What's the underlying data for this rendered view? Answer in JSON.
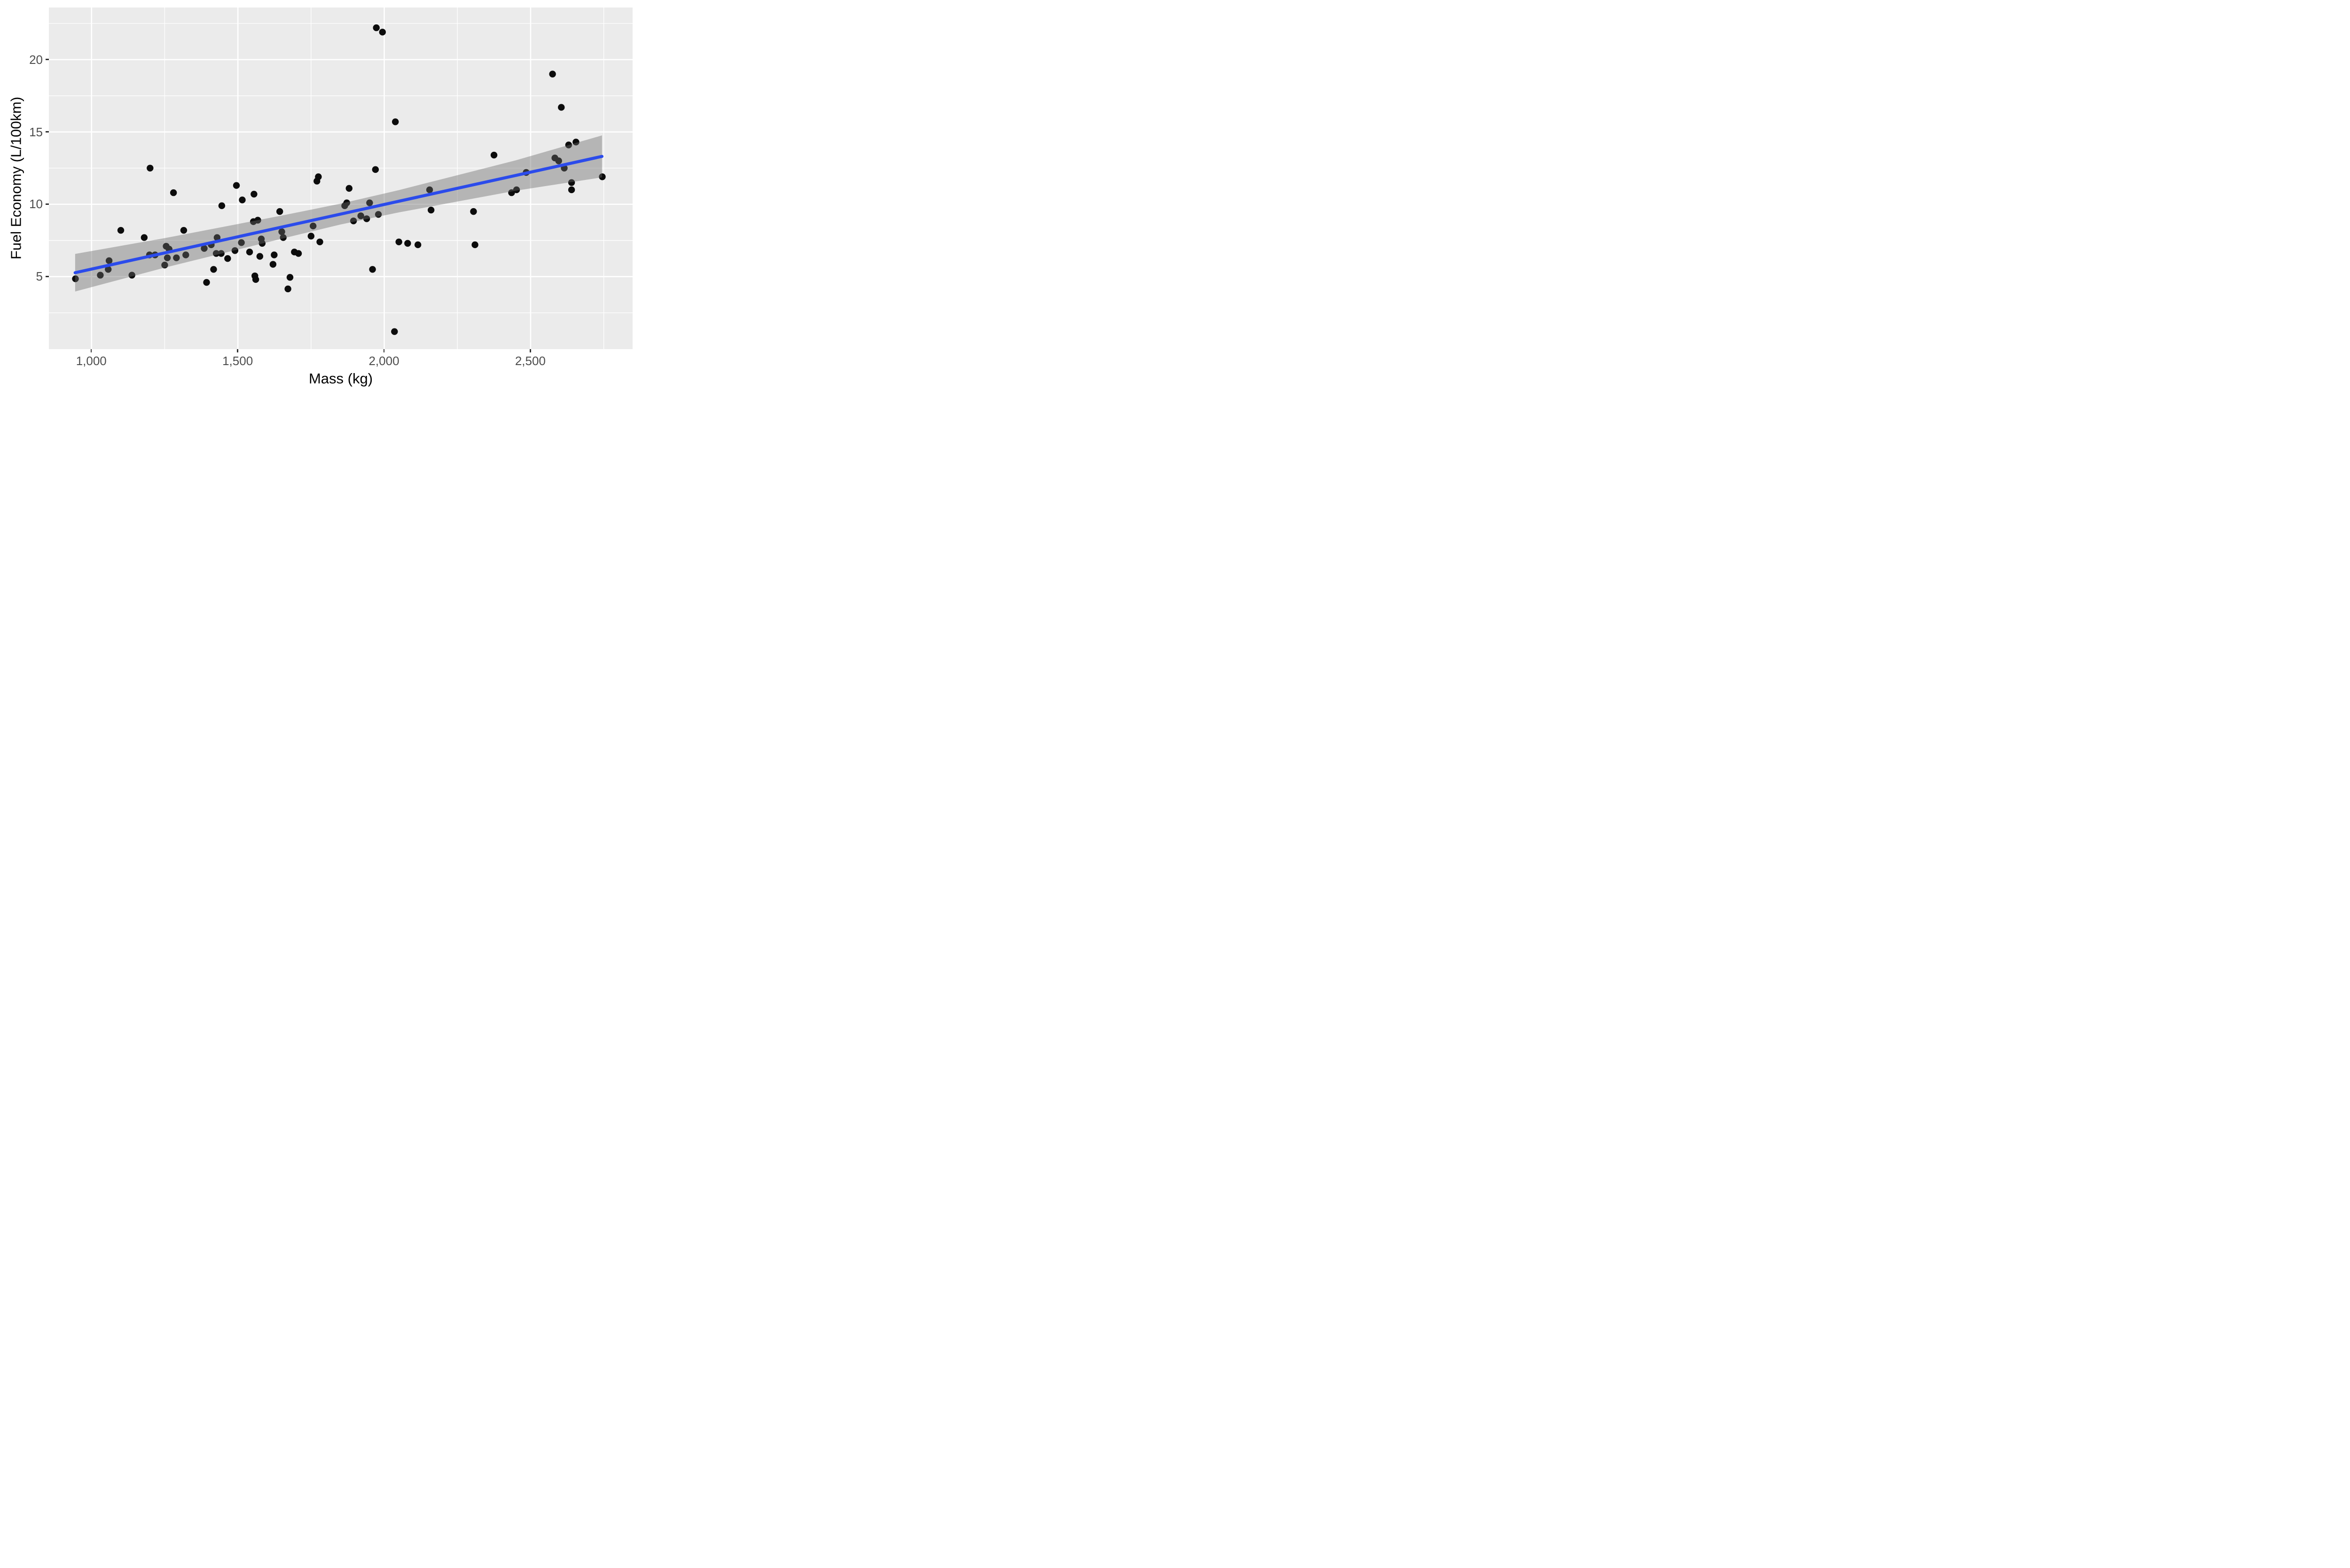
{
  "chart_data": {
    "type": "scatter",
    "title": "",
    "xlabel": "Mass (kg)",
    "ylabel": "Fuel Economy (L/100km)",
    "xlim": [
      854.3,
      2849.8
    ],
    "ylim": [
      -0.02,
      23.6
    ],
    "grid": "on",
    "legend": "none",
    "x_ticks": {
      "values": [
        1000,
        1500,
        2000,
        2500
      ],
      "labels": [
        "1,000",
        "1,500",
        "2,000",
        "2,500"
      ]
    },
    "y_ticks": {
      "values": [
        5,
        10,
        15,
        20
      ],
      "labels": [
        "5",
        "10",
        "15",
        "20"
      ]
    },
    "x_minor": [
      1250,
      1750,
      2250,
      2750
    ],
    "y_minor": [
      2.5,
      7.5,
      12.5,
      17.5,
      22.5
    ],
    "points": [
      [
        945,
        4.85
      ],
      [
        1030,
        5.1
      ],
      [
        1057,
        5.5
      ],
      [
        1060,
        6.1
      ],
      [
        1100,
        8.2
      ],
      [
        1138,
        5.1
      ],
      [
        1180,
        7.7
      ],
      [
        1198,
        6.5
      ],
      [
        1200,
        12.5
      ],
      [
        1217,
        6.5
      ],
      [
        1250,
        5.8
      ],
      [
        1255,
        7.1
      ],
      [
        1259,
        6.3
      ],
      [
        1265,
        6.9
      ],
      [
        1280,
        10.8
      ],
      [
        1290,
        6.3
      ],
      [
        1315,
        8.2
      ],
      [
        1322,
        6.5
      ],
      [
        1385,
        6.95
      ],
      [
        1393,
        4.6
      ],
      [
        1409,
        7.2
      ],
      [
        1417,
        5.5
      ],
      [
        1426,
        6.6
      ],
      [
        1429,
        7.7
      ],
      [
        1443,
        6.6
      ],
      [
        1445,
        9.9
      ],
      [
        1465,
        6.25
      ],
      [
        1490,
        6.8
      ],
      [
        1495,
        11.3
      ],
      [
        1512,
        7.35
      ],
      [
        1515,
        10.3
      ],
      [
        1540,
        6.7
      ],
      [
        1553,
        8.8
      ],
      [
        1555,
        10.7
      ],
      [
        1558,
        5.05
      ],
      [
        1561,
        4.8
      ],
      [
        1568,
        8.9
      ],
      [
        1575,
        6.4
      ],
      [
        1580,
        7.6
      ],
      [
        1583,
        7.3
      ],
      [
        1620,
        5.85
      ],
      [
        1624,
        6.5
      ],
      [
        1643,
        9.5
      ],
      [
        1650,
        8.1
      ],
      [
        1655,
        7.7
      ],
      [
        1671,
        4.15
      ],
      [
        1678,
        4.95
      ],
      [
        1693,
        6.7
      ],
      [
        1707,
        6.6
      ],
      [
        1750,
        7.8
      ],
      [
        1757,
        8.5
      ],
      [
        1770,
        11.6
      ],
      [
        1775,
        11.9
      ],
      [
        1780,
        7.4
      ],
      [
        1865,
        9.9
      ],
      [
        1872,
        10.1
      ],
      [
        1880,
        11.1
      ],
      [
        1895,
        8.85
      ],
      [
        1920,
        9.2
      ],
      [
        1940,
        9.0
      ],
      [
        1950,
        10.1
      ],
      [
        1960,
        5.5
      ],
      [
        1970,
        12.4
      ],
      [
        1973,
        22.2
      ],
      [
        1980,
        9.3
      ],
      [
        1994,
        21.9
      ],
      [
        2035,
        1.2
      ],
      [
        2038,
        15.7
      ],
      [
        2050,
        7.4
      ],
      [
        2080,
        7.3
      ],
      [
        2115,
        7.2
      ],
      [
        2155,
        11.0
      ],
      [
        2160,
        9.6
      ],
      [
        2305,
        9.5
      ],
      [
        2310,
        7.2
      ],
      [
        2375,
        13.4
      ],
      [
        2435,
        10.8
      ],
      [
        2452,
        11.0
      ],
      [
        2485,
        12.2
      ],
      [
        2575,
        19.0
      ],
      [
        2583,
        13.2
      ],
      [
        2596,
        13.0
      ],
      [
        2605,
        16.7
      ],
      [
        2615,
        12.5
      ],
      [
        2630,
        14.1
      ],
      [
        2640,
        11.0
      ],
      [
        2640,
        11.5
      ],
      [
        2655,
        14.3
      ],
      [
        2745,
        11.9
      ]
    ],
    "regression_line": {
      "x": [
        944,
        2744
      ],
      "y": [
        5.27,
        13.31
      ]
    },
    "confidence_band": {
      "x": [
        944,
        1250,
        1650,
        1850,
        2050,
        2450,
        2744
      ],
      "upper": [
        6.57,
        7.66,
        9.22,
        10.04,
        10.98,
        13.04,
        14.76
      ],
      "lower": [
        3.97,
        5.62,
        7.62,
        8.6,
        9.44,
        10.94,
        11.86
      ]
    },
    "colors": {
      "panel_bg": "#EBEBEB",
      "gridline": "#FFFFFF",
      "point": "#0C0C0C",
      "line": "#2B4BEB",
      "band": "rgba(107,107,107,0.42)",
      "tick_text": "#4D4D4D",
      "title_text": "#000000",
      "tick_mark": "#333333"
    }
  }
}
